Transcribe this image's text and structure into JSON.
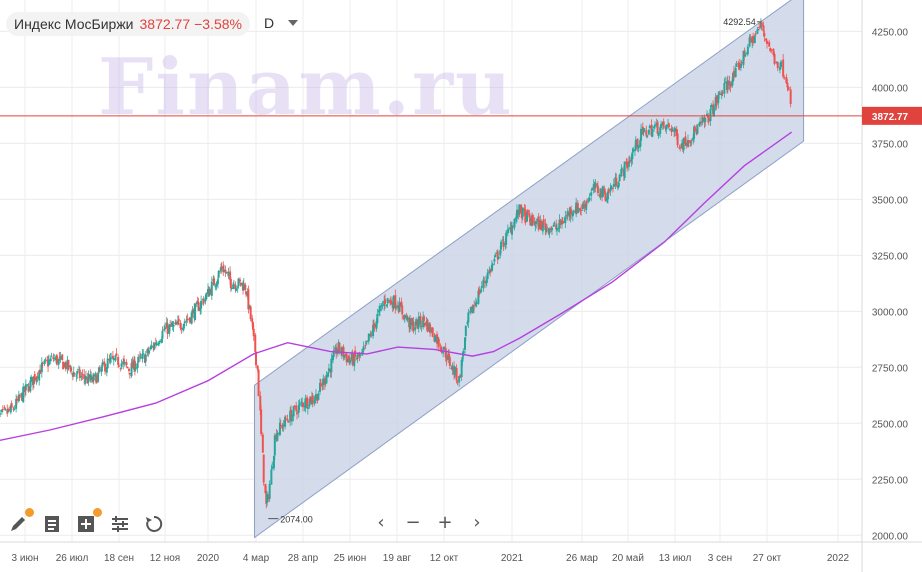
{
  "header": {
    "ticker": "Индекс МосБиржи",
    "price": "3872.77",
    "change": "−3.58%",
    "interval": "D"
  },
  "watermark": "Finam.ru",
  "colors": {
    "up": "#26a69a",
    "down": "#ef5350",
    "ma": "#b73fe0",
    "channel_fill": "#ccd6e9",
    "channel_stroke": "#8ea0c4",
    "price_line": "#e0433d",
    "grid": "#ececec",
    "axis_text": "#555555"
  },
  "toolbar": {
    "left_tools": [
      "pencil-icon",
      "notes-icon",
      "add-indicator-icon",
      "settings-sliders-icon",
      "reset-icon"
    ],
    "nav_glyphs": [
      "‹",
      "−",
      "+",
      "›"
    ]
  },
  "chart_data": {
    "type": "candlestick",
    "title": "",
    "y_axis_ticks": [
      "2000.00",
      "2250.00",
      "2500.00",
      "2750.00",
      "3000.00",
      "3250.00",
      "3500.00",
      "3750.00",
      "4000.00",
      "4250.00"
    ],
    "x_axis_ticks": [
      "3 июн",
      "26 июл",
      "18 сен",
      "12 ноя",
      "2020",
      "4 мар",
      "28 апр",
      "25 июн",
      "19 авг",
      "12 окт",
      "2021",
      "26 мар",
      "20 май",
      "13 июл",
      "3 сен",
      "27 окт",
      "2022"
    ],
    "ylim": [
      1970,
      4390
    ],
    "grid": true,
    "last_price": "3872.77",
    "annotations": [
      {
        "label": "2074.00",
        "date": "2020-03-16",
        "value": 2074.0
      },
      {
        "label": "4292.54",
        "date": "2021-10-21",
        "value": 4292.54
      }
    ],
    "price_series": [
      [
        "2019-05-01",
        2520
      ],
      [
        "2019-05-20",
        2560
      ],
      [
        "2019-06-03",
        2640
      ],
      [
        "2019-06-20",
        2740
      ],
      [
        "2019-07-05",
        2790
      ],
      [
        "2019-07-20",
        2760
      ],
      [
        "2019-07-26",
        2730
      ],
      [
        "2019-08-10",
        2700
      ],
      [
        "2019-08-20",
        2690
      ],
      [
        "2019-09-05",
        2770
      ],
      [
        "2019-09-18",
        2780
      ],
      [
        "2019-10-01",
        2740
      ],
      [
        "2019-10-20",
        2800
      ],
      [
        "2019-11-05",
        2880
      ],
      [
        "2019-11-12",
        2920
      ],
      [
        "2019-11-25",
        2930
      ],
      [
        "2019-12-10",
        2970
      ],
      [
        "2019-12-25",
        3040
      ],
      [
        "2020-01-10",
        3130
      ],
      [
        "2020-01-20",
        3200
      ],
      [
        "2020-01-31",
        3130
      ],
      [
        "2020-02-15",
        3120
      ],
      [
        "2020-02-20",
        3110
      ],
      [
        "2020-02-27",
        2960
      ],
      [
        "2020-03-06",
        2760
      ],
      [
        "2020-03-12",
        2350
      ],
      [
        "2020-03-16",
        2120
      ],
      [
        "2020-03-20",
        2200
      ],
      [
        "2020-03-27",
        2450
      ],
      [
        "2020-04-10",
        2520
      ],
      [
        "2020-04-28",
        2590
      ],
      [
        "2020-05-15",
        2620
      ],
      [
        "2020-06-01",
        2750
      ],
      [
        "2020-06-10",
        2840
      ],
      [
        "2020-06-25",
        2780
      ],
      [
        "2020-07-10",
        2800
      ],
      [
        "2020-07-25",
        2950
      ],
      [
        "2020-08-05",
        3050
      ],
      [
        "2020-08-19",
        3040
      ],
      [
        "2020-09-05",
        2930
      ],
      [
        "2020-09-20",
        2960
      ],
      [
        "2020-10-05",
        2870
      ],
      [
        "2020-10-12",
        2830
      ],
      [
        "2020-10-30",
        2690
      ],
      [
        "2020-11-10",
        2960
      ],
      [
        "2020-11-25",
        3100
      ],
      [
        "2020-12-15",
        3250
      ],
      [
        "2021-01-10",
        3450
      ],
      [
        "2021-01-25",
        3400
      ],
      [
        "2021-02-10",
        3380
      ],
      [
        "2021-02-25",
        3370
      ],
      [
        "2021-03-15",
        3460
      ],
      [
        "2021-03-26",
        3460
      ],
      [
        "2021-04-10",
        3550
      ],
      [
        "2021-04-25",
        3520
      ],
      [
        "2021-05-10",
        3600
      ],
      [
        "2021-05-20",
        3660
      ],
      [
        "2021-06-05",
        3790
      ],
      [
        "2021-06-20",
        3820
      ],
      [
        "2021-07-10",
        3820
      ],
      [
        "2021-07-20",
        3740
      ],
      [
        "2021-08-05",
        3800
      ],
      [
        "2021-08-20",
        3860
      ],
      [
        "2021-09-05",
        3980
      ],
      [
        "2021-09-20",
        4050
      ],
      [
        "2021-10-05",
        4180
      ],
      [
        "2021-10-21",
        4280
      ],
      [
        "2021-11-01",
        4150
      ],
      [
        "2021-11-10",
        4090
      ],
      [
        "2021-11-17",
        4010
      ],
      [
        "2021-11-19",
        3872.77
      ]
    ],
    "moving_average": [
      [
        "2019-05-01",
        2420
      ],
      [
        "2019-07-01",
        2470
      ],
      [
        "2019-09-01",
        2530
      ],
      [
        "2019-11-01",
        2590
      ],
      [
        "2020-01-01",
        2690
      ],
      [
        "2020-03-01",
        2810
      ],
      [
        "2020-04-10",
        2860
      ],
      [
        "2020-06-01",
        2820
      ],
      [
        "2020-07-15",
        2810
      ],
      [
        "2020-08-20",
        2840
      ],
      [
        "2020-10-01",
        2830
      ],
      [
        "2020-11-15",
        2800
      ],
      [
        "2020-12-10",
        2820
      ],
      [
        "2021-01-10",
        2880
      ],
      [
        "2021-03-01",
        2990
      ],
      [
        "2021-05-01",
        3130
      ],
      [
        "2021-07-01",
        3310
      ],
      [
        "2021-08-15",
        3480
      ],
      [
        "2021-10-01",
        3650
      ],
      [
        "2021-11-19",
        3800
      ]
    ],
    "channel": {
      "start_date": "2020-03-02",
      "end_date": "2021-11-30",
      "upper": [
        2670,
        4430
      ],
      "lower": [
        1990,
        3760
      ]
    }
  }
}
